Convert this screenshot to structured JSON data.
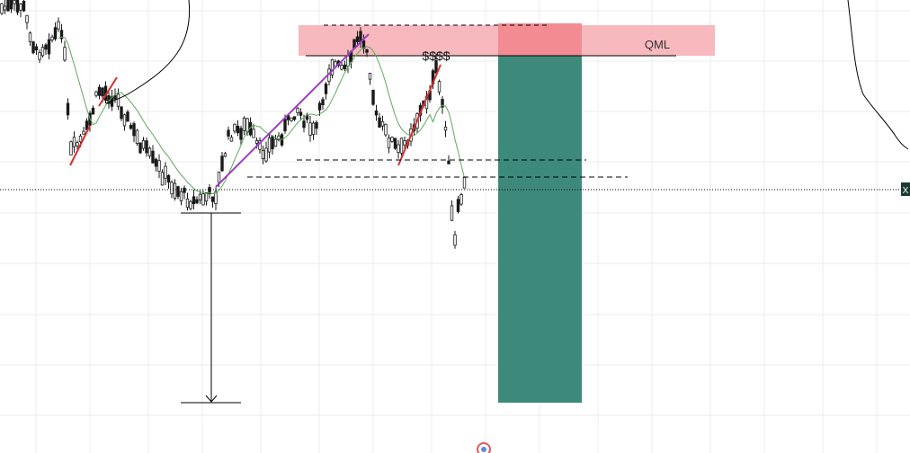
{
  "chart": {
    "qml_label": "QML",
    "liquidity_label": "$$$$",
    "price_tag_glyph": "X",
    "colors": {
      "background": "#ffffff",
      "grid": "#ececec",
      "candle": "#1a1a1a",
      "moving_average": "#5caa5c",
      "zone": "#f7b9bd",
      "zone_overlap": "#f28b92",
      "trade_box": "#3d8a7b",
      "trend_red": "#d63030",
      "trend_purple": "#9b3cc3",
      "line": "#000000"
    }
  },
  "chart_data": {
    "type": "candlestick",
    "title": "",
    "xlabel": "",
    "ylabel": "",
    "annotations": [
      "QML",
      "$$$$"
    ],
    "grid": true
  }
}
